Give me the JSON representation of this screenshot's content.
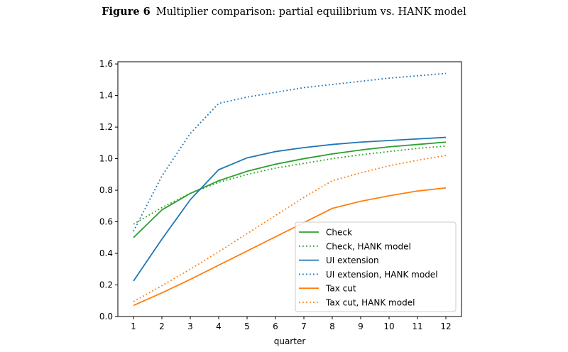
{
  "figure": {
    "label": "Figure 6",
    "caption": "Multiplier comparison: partial equilibrium vs. HANK model"
  },
  "chart_data": {
    "type": "line",
    "title": "",
    "xlabel": "quarter",
    "ylabel": "",
    "x": [
      1,
      2,
      3,
      4,
      5,
      6,
      7,
      8,
      9,
      10,
      11,
      12
    ],
    "xticks": [
      "1",
      "2",
      "3",
      "4",
      "5",
      "6",
      "7",
      "8",
      "9",
      "10",
      "11",
      "12"
    ],
    "yticks": [
      "0.0",
      "0.2",
      "0.4",
      "0.6",
      "0.8",
      "1.0",
      "1.2",
      "1.4",
      "1.6"
    ],
    "xlim": [
      0.45,
      12.55
    ],
    "ylim": [
      0.0,
      1.614
    ],
    "grid": false,
    "legend_position": "lower-right",
    "series": [
      {
        "name": "Check",
        "color": "#2ca02c",
        "style": "solid",
        "values": [
          0.5,
          0.675,
          0.78,
          0.86,
          0.92,
          0.965,
          1.0,
          1.03,
          1.055,
          1.075,
          1.09,
          1.105
        ]
      },
      {
        "name": "Check, HANK model",
        "color": "#2ca02c",
        "style": "dotted",
        "values": [
          0.585,
          0.69,
          0.78,
          0.85,
          0.9,
          0.94,
          0.97,
          1.0,
          1.025,
          1.045,
          1.065,
          1.08
        ]
      },
      {
        "name": "UI extension",
        "color": "#1f77b4",
        "style": "solid",
        "values": [
          0.225,
          0.49,
          0.74,
          0.93,
          1.005,
          1.045,
          1.07,
          1.09,
          1.105,
          1.115,
          1.125,
          1.135
        ]
      },
      {
        "name": "UI extension, HANK model",
        "color": "#1f77b4",
        "style": "dotted",
        "values": [
          0.54,
          0.89,
          1.16,
          1.35,
          1.39,
          1.42,
          1.45,
          1.47,
          1.49,
          1.51,
          1.525,
          1.54
        ]
      },
      {
        "name": "Tax cut",
        "color": "#ff7f0e",
        "style": "solid",
        "values": [
          0.07,
          0.15,
          0.235,
          0.325,
          0.415,
          0.505,
          0.595,
          0.685,
          0.73,
          0.765,
          0.795,
          0.815
        ]
      },
      {
        "name": "Tax cut, HANK model",
        "color": "#ff7f0e",
        "style": "dotted",
        "values": [
          0.095,
          0.195,
          0.3,
          0.41,
          0.525,
          0.64,
          0.755,
          0.86,
          0.91,
          0.955,
          0.99,
          1.02
        ]
      }
    ]
  }
}
